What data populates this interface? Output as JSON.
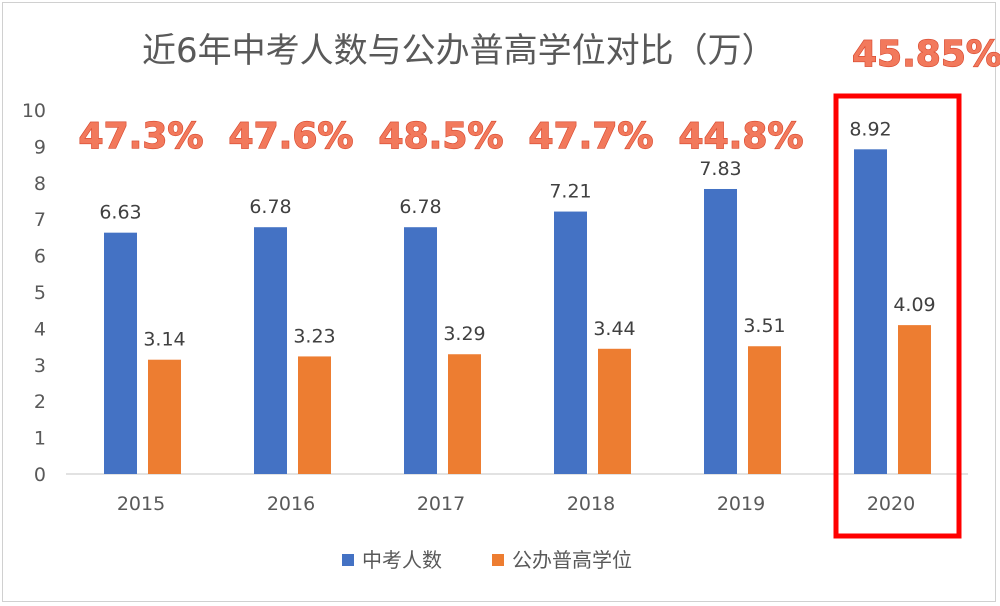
{
  "chart_data": {
    "type": "bar",
    "title": "近6年中考人数与公办普高学位对比（万）",
    "highlight_ratio": "45.85%",
    "categories": [
      "2015",
      "2016",
      "2017",
      "2018",
      "2019",
      "2020"
    ],
    "series": [
      {
        "name": "中考人数",
        "color": "#4472c4",
        "values": [
          6.63,
          6.78,
          6.78,
          7.21,
          7.83,
          8.92
        ]
      },
      {
        "name": "公办普高学位",
        "color": "#ed7d31",
        "values": [
          3.14,
          3.23,
          3.29,
          3.44,
          3.51,
          4.09
        ]
      }
    ],
    "value_labels": {
      "s0": [
        "6.63",
        "6.78",
        "6.78",
        "7.21",
        "7.83",
        "8.92"
      ],
      "s1": [
        "3.14",
        "3.23",
        "3.29",
        "3.44",
        "3.51",
        "4.09"
      ]
    },
    "ratios": [
      "47.3%",
      "47.6%",
      "48.5%",
      "47.7%",
      "44.8%"
    ],
    "ylim": [
      0,
      10
    ],
    "yticks": [
      "0",
      "1",
      "2",
      "3",
      "4",
      "5",
      "6",
      "7",
      "8",
      "9",
      "10"
    ],
    "grid": false,
    "legend_position": "bottom",
    "highlighted_category": "2020",
    "highlight_color": "#ff0000"
  }
}
